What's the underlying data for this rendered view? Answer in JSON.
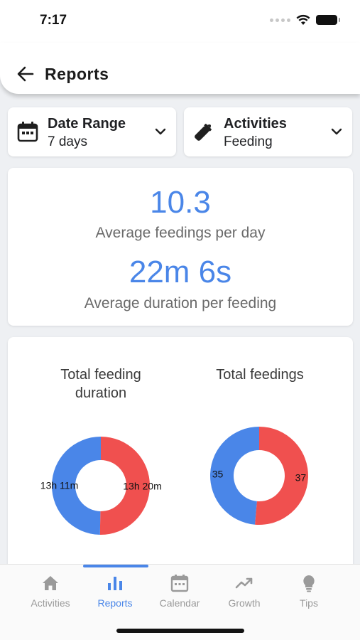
{
  "status_bar": {
    "time": "7:17"
  },
  "header": {
    "title": "Reports",
    "back_icon": "arrow-left-icon"
  },
  "filters": {
    "date_range": {
      "label": "Date Range",
      "value": "7 days",
      "icon": "calendar-icon"
    },
    "activities": {
      "label": "Activities",
      "value": "Feeding",
      "icon": "baby-bottle-icon"
    }
  },
  "stats": {
    "avg_feedings": {
      "value": "10.3",
      "label": "Average feedings per day"
    },
    "avg_duration": {
      "value": "22m 6s",
      "label": "Average duration per feeding"
    }
  },
  "colors": {
    "accent": "#4a86e8",
    "series_a": "#4a86e8",
    "series_b": "#f0504f"
  },
  "chart_data": [
    {
      "type": "pie",
      "title": "Total feeding duration",
      "labels": [
        "13h 11m",
        "13h 20m"
      ],
      "values": [
        791,
        800
      ],
      "colors": [
        "#4a86e8",
        "#f0504f"
      ]
    },
    {
      "type": "pie",
      "title": "Total feedings",
      "labels": [
        "35",
        "37"
      ],
      "values": [
        35,
        37
      ],
      "colors": [
        "#4a86e8",
        "#f0504f"
      ]
    }
  ],
  "bottom_nav": {
    "items": [
      {
        "label": "Activities",
        "icon": "home-icon",
        "active": false
      },
      {
        "label": "Reports",
        "icon": "bar-chart-icon",
        "active": true
      },
      {
        "label": "Calendar",
        "icon": "calendar-icon",
        "active": false
      },
      {
        "label": "Growth",
        "icon": "trending-up-icon",
        "active": false
      },
      {
        "label": "Tips",
        "icon": "lightbulb-icon",
        "active": false
      }
    ]
  }
}
